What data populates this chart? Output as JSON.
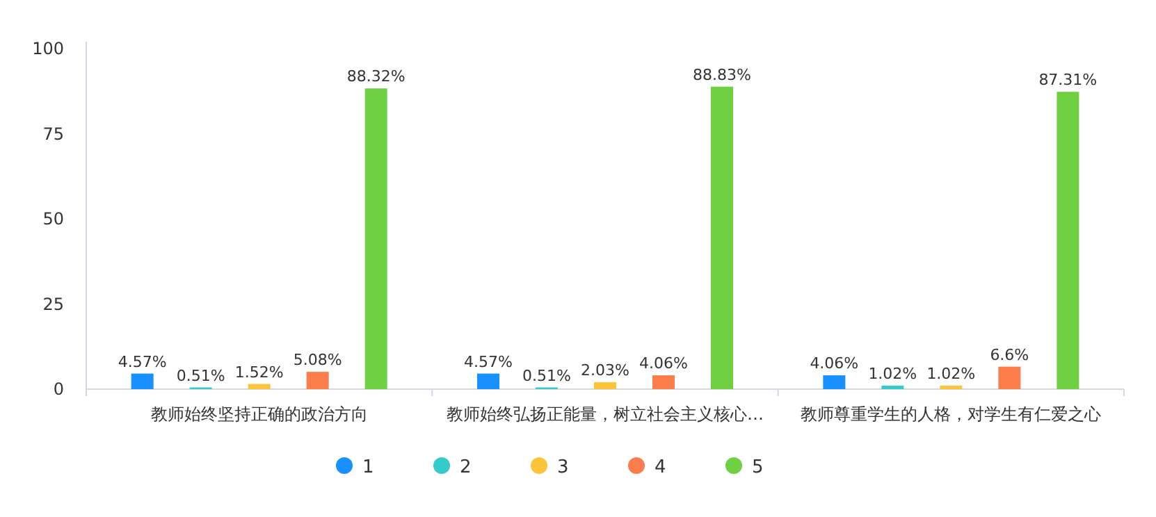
{
  "chart_data": {
    "type": "bar",
    "categories": [
      "教师始终坚持正确的政治方向",
      "教师始终弘扬正能量，树立社会主义核心…",
      "教师尊重学生的人格，对学生有仁爱之心"
    ],
    "ylim": [
      0,
      100
    ],
    "yticks": [
      0,
      25,
      50,
      75,
      100
    ],
    "legend": "bottom",
    "marker": "circle",
    "series": [
      {
        "name": "1",
        "color": "#1890ff",
        "values": [
          4.57,
          4.57,
          4.06
        ],
        "value_labels": [
          "4.57%",
          "4.57%",
          "4.06%"
        ]
      },
      {
        "name": "2",
        "color": "#36cbcb",
        "values": [
          0.51,
          0.51,
          1.02
        ],
        "value_labels": [
          "0.51%",
          "0.51%",
          "1.02%"
        ]
      },
      {
        "name": "3",
        "color": "#fbc43b",
        "values": [
          1.52,
          2.03,
          1.02
        ],
        "value_labels": [
          "1.52%",
          "2.03%",
          "1.02%"
        ]
      },
      {
        "name": "4",
        "color": "#fb7d4b",
        "values": [
          5.08,
          4.06,
          6.6
        ],
        "value_labels": [
          "5.08%",
          "4.06%",
          "6.6%"
        ]
      },
      {
        "name": "5",
        "color": "#6fd042",
        "values": [
          88.32,
          88.83,
          87.31
        ],
        "value_labels": [
          "88.32%",
          "88.83%",
          "87.31%"
        ]
      }
    ]
  }
}
